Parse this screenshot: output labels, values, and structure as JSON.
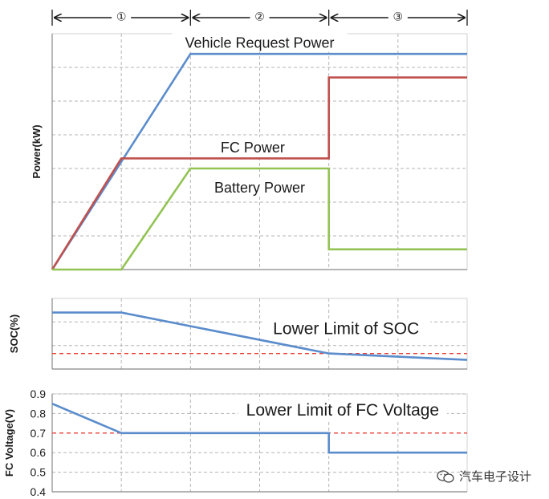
{
  "watermark": "汽车电子设计",
  "colors": {
    "vehicle": "#5b8ccc",
    "fc": "#c0504d",
    "battery": "#92c353",
    "limit": "#e8413a",
    "grid": "#b5b5b5",
    "axis": "#888888",
    "text": "#1a1a1a"
  },
  "chart_data": [
    {
      "id": "phases",
      "type": "annotation",
      "labels": [
        "①",
        "②",
        "③"
      ],
      "boundaries": [
        0,
        2,
        4,
        6
      ]
    },
    {
      "id": "power",
      "type": "line",
      "ylabel": "Power(kW)",
      "xlim": [
        0,
        6
      ],
      "ylim": [
        0,
        7
      ],
      "series": [
        {
          "name": "Vehicle Request Power",
          "color_key": "vehicle",
          "points": [
            [
              0,
              0
            ],
            [
              2,
              6.4
            ],
            [
              6,
              6.4
            ]
          ]
        },
        {
          "name": "FC Power",
          "color_key": "fc",
          "points": [
            [
              0,
              0
            ],
            [
              1,
              3.3
            ],
            [
              4,
              3.3
            ],
            [
              4,
              5.7
            ],
            [
              6,
              5.7
            ]
          ]
        },
        {
          "name": "Battery Power",
          "color_key": "battery",
          "points": [
            [
              0,
              0
            ],
            [
              1,
              0
            ],
            [
              2,
              3
            ],
            [
              4,
              3
            ],
            [
              4,
              0.6
            ],
            [
              6,
              0.6
            ]
          ]
        }
      ],
      "annotations": [
        {
          "text": "Vehicle Request Power",
          "x": 3.0,
          "y": 6.7
        },
        {
          "text": "FC Power",
          "x": 2.9,
          "y": 3.6
        },
        {
          "text": "Battery Power",
          "x": 3.0,
          "y": 2.4
        }
      ]
    },
    {
      "id": "soc",
      "type": "line",
      "ylabel": "SOC(%)",
      "xlim": [
        0,
        6
      ],
      "ylim": [
        0,
        1
      ],
      "series": [
        {
          "name": "SOC",
          "color_key": "vehicle",
          "points": [
            [
              0,
              0.8
            ],
            [
              1,
              0.8
            ],
            [
              4,
              0.22
            ],
            [
              6,
              0.13
            ]
          ]
        }
      ],
      "limit_line": {
        "name": "Lower Limit of SOC",
        "value": 0.22
      },
      "annotations": [
        {
          "text": "Lower Limit of SOC",
          "x": 4.25,
          "y": 0.55
        }
      ]
    },
    {
      "id": "fc_voltage",
      "type": "line",
      "ylabel": "FC Voltage(V)",
      "xlim": [
        0,
        6
      ],
      "ylim": [
        0.4,
        0.9
      ],
      "yticks": [
        "0.9",
        "0.8",
        "0.7",
        "0.6",
        "0.5",
        "0.4"
      ],
      "series": [
        {
          "name": "FC Voltage",
          "color_key": "vehicle",
          "points": [
            [
              0,
              0.85
            ],
            [
              1,
              0.7
            ],
            [
              4,
              0.7
            ],
            [
              4,
              0.6
            ],
            [
              6,
              0.6
            ]
          ]
        }
      ],
      "limit_line": {
        "name": "Lower Limit of FC Voltage",
        "value": 0.7
      },
      "annotations": [
        {
          "text": "Lower Limit of FC Voltage",
          "x": 4.2,
          "y": 0.81
        }
      ]
    }
  ]
}
